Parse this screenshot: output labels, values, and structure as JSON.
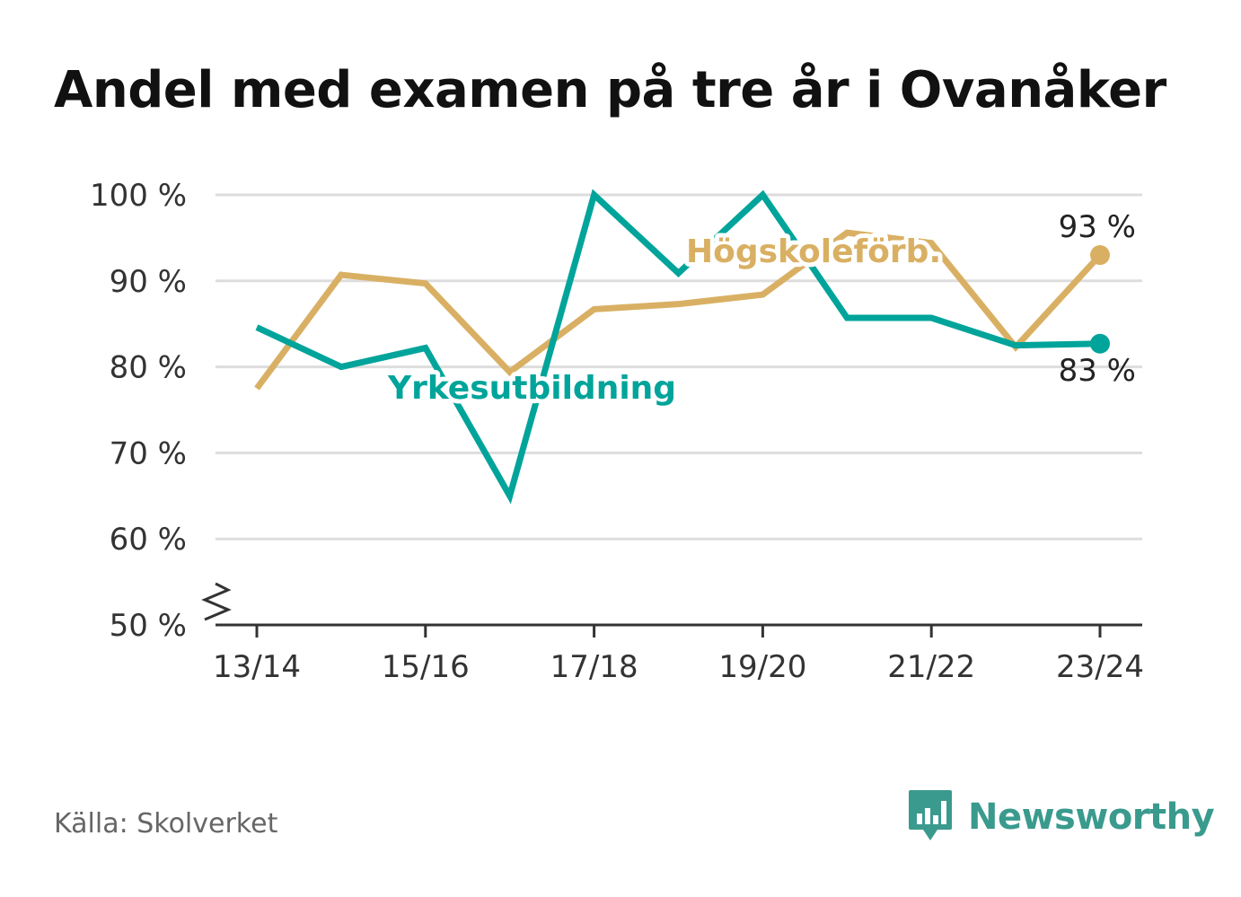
{
  "title": "Andel med examen på tre år i Ovanåker",
  "source": "Källa: Skolverket",
  "brand": "Newsworthy",
  "colors": {
    "vocational": "#00a49a",
    "academic": "#d9b063",
    "grid": "#dddddd",
    "axis": "#333333"
  },
  "chart_data": {
    "type": "line",
    "title": "Andel med examen på tre år i Ovanåker",
    "x": [
      "13/14",
      "14/15",
      "15/16",
      "16/17",
      "17/18",
      "18/19",
      "19/20",
      "20/21",
      "21/22",
      "22/23",
      "23/24"
    ],
    "x_tick_labels": [
      "13/14",
      "15/16",
      "17/18",
      "19/20",
      "21/22",
      "23/24"
    ],
    "ylim": [
      50,
      100
    ],
    "y_ticks": [
      50,
      60,
      70,
      80,
      90,
      100
    ],
    "y_tick_labels": [
      "50 %",
      "60 %",
      "70 %",
      "80 %",
      "90 %",
      "100 %"
    ],
    "y_axis_break": true,
    "grid": true,
    "series": [
      {
        "name": "Högskoleförb.",
        "color": "#d9b063",
        "values": [
          77.5,
          90.7,
          89.7,
          79.4,
          86.7,
          87.3,
          88.4,
          95.6,
          94.4,
          82.3,
          93
        ]
      },
      {
        "name": "Yrkesutbildning",
        "color": "#00a49a",
        "values": [
          84.6,
          80,
          82.2,
          65,
          100,
          90.9,
          100,
          85.7,
          85.7,
          82.5,
          82.7
        ]
      }
    ],
    "end_labels": [
      "93 %",
      "83 %"
    ]
  }
}
